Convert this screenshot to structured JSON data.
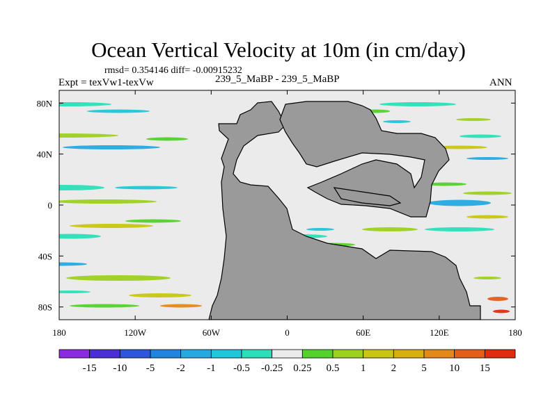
{
  "header": {
    "title": "Ocean Vertical Velocity at 10m (in cm/day)",
    "stats": "rmsd= 0.354146 diff= -0.00915232",
    "experiment": "Expt = texVw1-texVw",
    "case": "239_5_MaBP - 239_5_MaBP",
    "season": "ANN"
  },
  "chart_data": {
    "type": "heatmap",
    "title": "Ocean Vertical Velocity at 10m (in cm/day)",
    "xlabel": "",
    "ylabel": "",
    "xlim": [
      -180,
      180
    ],
    "ylim": [
      -90,
      90
    ],
    "x_ticks": [
      {
        "value": -180,
        "label": "180"
      },
      {
        "value": -120,
        "label": "120W"
      },
      {
        "value": -60,
        "label": "60W"
      },
      {
        "value": 0,
        "label": "0"
      },
      {
        "value": 60,
        "label": "60E"
      },
      {
        "value": 120,
        "label": "120E"
      },
      {
        "value": 180,
        "label": "180"
      }
    ],
    "y_ticks": [
      {
        "value": 80,
        "label": "80N"
      },
      {
        "value": 40,
        "label": "40N"
      },
      {
        "value": 0,
        "label": "0"
      },
      {
        "value": -40,
        "label": "40S"
      },
      {
        "value": -80,
        "label": "80S"
      }
    ],
    "colorbar": {
      "labels": [
        "-15",
        "-10",
        "-5",
        "-2",
        "-1",
        "-0.5",
        "-0.25",
        "0.25",
        "0.5",
        "1",
        "2",
        "5",
        "10",
        "15"
      ],
      "colors": [
        "#8a2be2",
        "#4b2fd6",
        "#2f55dc",
        "#1f86e0",
        "#25a9e0",
        "#20c7d8",
        "#2be0b8",
        "#ebebeb",
        "#54d22a",
        "#9ed01e",
        "#c9c611",
        "#d8b00e",
        "#e48818",
        "#e45e1a",
        "#e02c10"
      ]
    },
    "land_color": "#9a9a9a",
    "background_value_color": "#ebebeb"
  }
}
